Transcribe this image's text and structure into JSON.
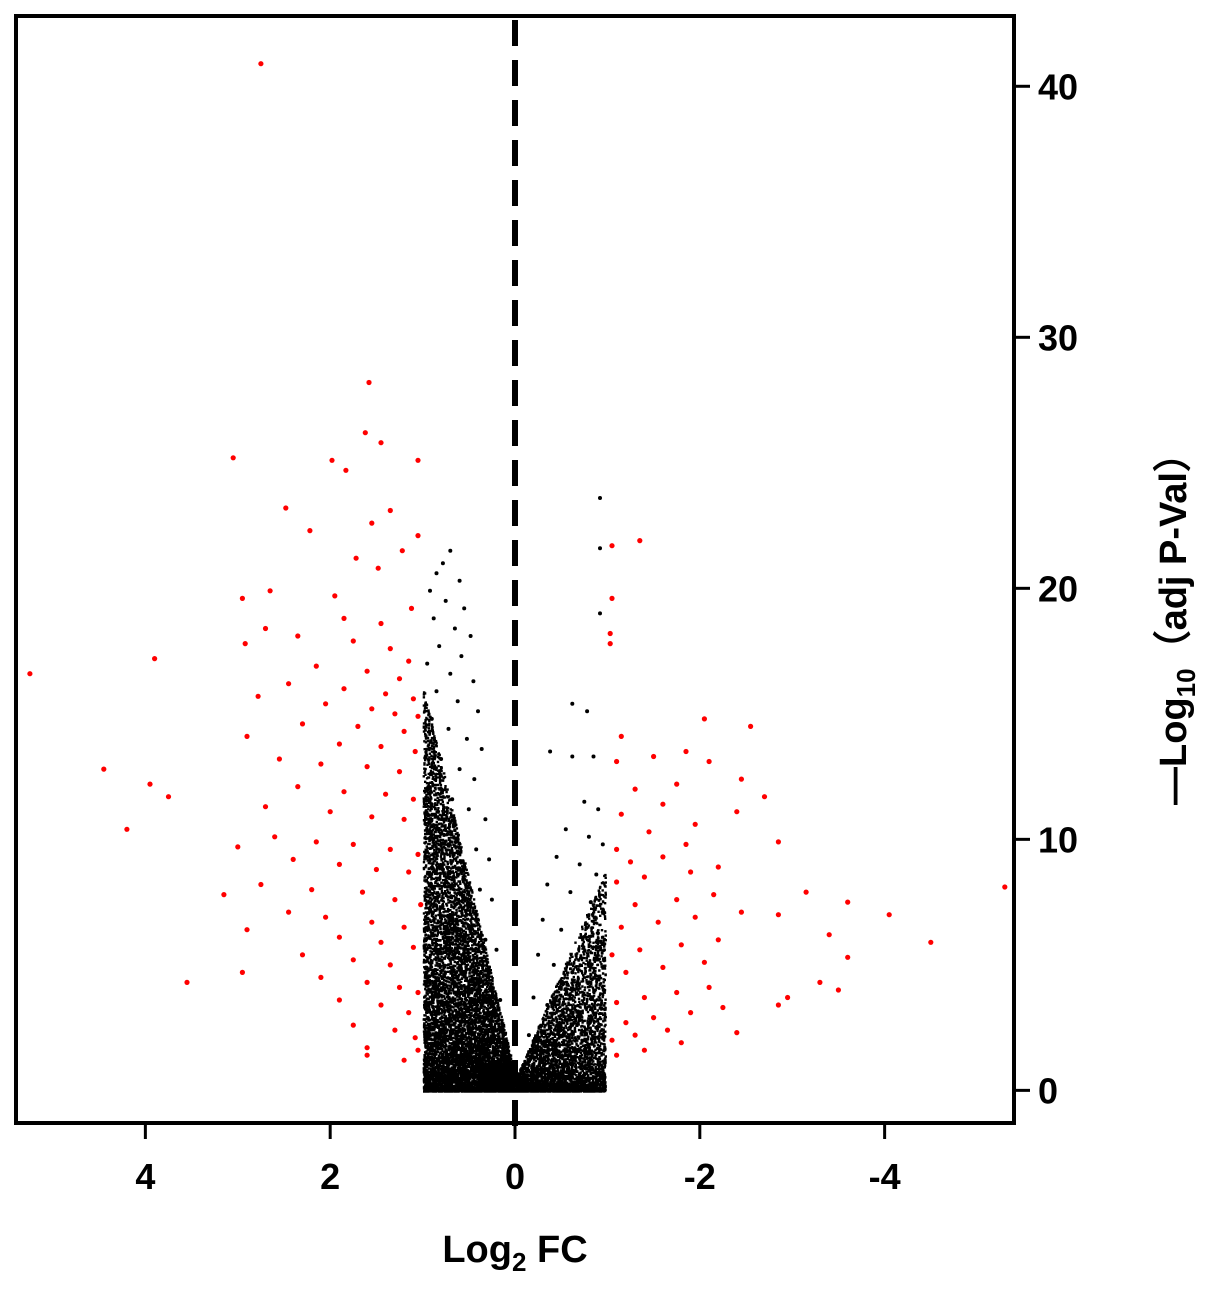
{
  "chart_data": {
    "type": "scatter",
    "title": "",
    "xlabel": {
      "prefix": "Log",
      "sub": "2",
      "suffix": " FC"
    },
    "ylabel": {
      "prefix": "—Log",
      "sub": "10",
      "suffix": "（adj P-Val）"
    },
    "x_reversed": true,
    "xlim": [
      5.4,
      -5.4
    ],
    "ylim": [
      -1.3,
      42.8
    ],
    "x_ticks": [
      4,
      2,
      0,
      -2,
      -4
    ],
    "x_tick_labels": [
      "4",
      "2",
      "0",
      "-2",
      "-4"
    ],
    "y_ticks": [
      0,
      10,
      20,
      30,
      40
    ],
    "y_tick_labels": [
      "0",
      "10",
      "20",
      "30",
      "40"
    ],
    "y_axis_side": "right",
    "grid": false,
    "legend": "none",
    "reference_lines": [
      {
        "orientation": "vertical",
        "x": 0,
        "style": "dashed",
        "color": "#000000"
      }
    ],
    "colors": {
      "significant": "#ff0000",
      "not_significant": "#000000"
    },
    "significance_rule": "|log2FC| > 1",
    "series": [
      {
        "color_key": "significant",
        "points": [
          [
            2.75,
            40.9
          ],
          [
            1.58,
            28.2
          ],
          [
            1.62,
            26.2
          ],
          [
            1.45,
            25.8
          ],
          [
            1.05,
            25.1
          ],
          [
            3.05,
            25.2
          ],
          [
            1.98,
            25.1
          ],
          [
            1.83,
            24.7
          ],
          [
            1.55,
            22.6
          ],
          [
            2.48,
            23.2
          ],
          [
            1.35,
            23.1
          ],
          [
            1.05,
            22.1
          ],
          [
            2.22,
            22.3
          ],
          [
            1.72,
            21.2
          ],
          [
            1.48,
            20.8
          ],
          [
            1.22,
            21.5
          ],
          [
            2.65,
            19.9
          ],
          [
            1.95,
            19.7
          ],
          [
            2.95,
            19.6
          ],
          [
            1.12,
            19.2
          ],
          [
            1.85,
            18.8
          ],
          [
            1.45,
            18.6
          ],
          [
            2.7,
            18.4
          ],
          [
            2.35,
            18.1
          ],
          [
            2.92,
            17.8
          ],
          [
            1.75,
            17.9
          ],
          [
            1.35,
            17.6
          ],
          [
            1.15,
            17.1
          ],
          [
            3.9,
            17.2
          ],
          [
            5.25,
            16.6
          ],
          [
            2.15,
            16.9
          ],
          [
            1.6,
            16.7
          ],
          [
            1.25,
            16.4
          ],
          [
            2.45,
            16.2
          ],
          [
            1.85,
            16.0
          ],
          [
            1.4,
            15.8
          ],
          [
            1.1,
            15.6
          ],
          [
            2.78,
            15.7
          ],
          [
            2.05,
            15.4
          ],
          [
            1.55,
            15.2
          ],
          [
            1.3,
            15.0
          ],
          [
            1.05,
            14.9
          ],
          [
            2.3,
            14.6
          ],
          [
            1.7,
            14.5
          ],
          [
            1.2,
            14.3
          ],
          [
            2.9,
            14.1
          ],
          [
            1.9,
            13.8
          ],
          [
            1.45,
            13.7
          ],
          [
            1.08,
            13.5
          ],
          [
            2.55,
            13.2
          ],
          [
            2.1,
            13.0
          ],
          [
            1.6,
            12.9
          ],
          [
            1.25,
            12.7
          ],
          [
            4.45,
            12.8
          ],
          [
            3.95,
            12.2
          ],
          [
            3.75,
            11.7
          ],
          [
            2.35,
            12.1
          ],
          [
            1.85,
            11.9
          ],
          [
            1.4,
            11.8
          ],
          [
            1.1,
            11.6
          ],
          [
            2.7,
            11.3
          ],
          [
            2.0,
            11.1
          ],
          [
            1.55,
            10.9
          ],
          [
            1.2,
            10.8
          ],
          [
            4.2,
            10.4
          ],
          [
            3.0,
            9.7
          ],
          [
            2.6,
            10.1
          ],
          [
            2.15,
            9.9
          ],
          [
            1.75,
            9.8
          ],
          [
            1.35,
            9.6
          ],
          [
            1.05,
            9.4
          ],
          [
            2.4,
            9.2
          ],
          [
            1.9,
            9.0
          ],
          [
            1.5,
            8.8
          ],
          [
            1.15,
            8.7
          ],
          [
            3.15,
            7.8
          ],
          [
            2.75,
            8.2
          ],
          [
            2.2,
            8.0
          ],
          [
            1.65,
            7.9
          ],
          [
            1.3,
            7.6
          ],
          [
            1.02,
            7.4
          ],
          [
            2.9,
            6.4
          ],
          [
            2.45,
            7.1
          ],
          [
            2.05,
            6.9
          ],
          [
            1.55,
            6.7
          ],
          [
            1.2,
            6.5
          ],
          [
            1.9,
            6.1
          ],
          [
            1.45,
            5.9
          ],
          [
            1.1,
            5.7
          ],
          [
            2.95,
            4.7
          ],
          [
            2.3,
            5.4
          ],
          [
            1.75,
            5.2
          ],
          [
            1.35,
            5.0
          ],
          [
            3.55,
            4.3
          ],
          [
            2.1,
            4.5
          ],
          [
            1.6,
            4.3
          ],
          [
            1.25,
            4.1
          ],
          [
            1.05,
            3.9
          ],
          [
            1.9,
            3.6
          ],
          [
            1.45,
            3.4
          ],
          [
            1.15,
            3.1
          ],
          [
            1.75,
            2.6
          ],
          [
            1.3,
            2.4
          ],
          [
            1.08,
            2.1
          ],
          [
            1.6,
            1.7
          ],
          [
            1.6,
            1.4
          ],
          [
            1.2,
            1.2
          ],
          [
            1.05,
            1.6
          ],
          [
            -1.05,
            21.7
          ],
          [
            -1.35,
            21.9
          ],
          [
            -1.05,
            19.6
          ],
          [
            -1.03,
            18.2
          ],
          [
            -1.03,
            17.8
          ],
          [
            -2.05,
            14.8
          ],
          [
            -2.55,
            14.5
          ],
          [
            -1.15,
            14.1
          ],
          [
            -1.85,
            13.5
          ],
          [
            -1.5,
            13.3
          ],
          [
            -1.1,
            13.1
          ],
          [
            -2.1,
            13.1
          ],
          [
            -2.45,
            12.4
          ],
          [
            -1.75,
            12.2
          ],
          [
            -1.3,
            12.0
          ],
          [
            -2.7,
            11.7
          ],
          [
            -1.6,
            11.4
          ],
          [
            -2.4,
            11.1
          ],
          [
            -1.15,
            11.0
          ],
          [
            -1.95,
            10.6
          ],
          [
            -1.45,
            10.3
          ],
          [
            -2.85,
            9.9
          ],
          [
            -1.85,
            9.8
          ],
          [
            -1.1,
            9.6
          ],
          [
            -1.6,
            9.3
          ],
          [
            -1.25,
            9.1
          ],
          [
            -2.2,
            8.9
          ],
          [
            -1.9,
            8.7
          ],
          [
            -1.4,
            8.5
          ],
          [
            -1.1,
            8.3
          ],
          [
            -5.3,
            8.1
          ],
          [
            -3.15,
            7.9
          ],
          [
            -2.15,
            7.8
          ],
          [
            -1.75,
            7.6
          ],
          [
            -1.3,
            7.4
          ],
          [
            -3.6,
            7.5
          ],
          [
            -4.05,
            7.0
          ],
          [
            -2.85,
            7.0
          ],
          [
            -2.45,
            7.1
          ],
          [
            -1.95,
            6.9
          ],
          [
            -1.55,
            6.7
          ],
          [
            -1.15,
            6.5
          ],
          [
            -3.4,
            6.2
          ],
          [
            -4.5,
            5.9
          ],
          [
            -2.2,
            6.0
          ],
          [
            -1.8,
            5.8
          ],
          [
            -1.35,
            5.6
          ],
          [
            -1.05,
            5.4
          ],
          [
            -3.6,
            5.3
          ],
          [
            -2.05,
            5.1
          ],
          [
            -1.6,
            4.9
          ],
          [
            -1.2,
            4.7
          ],
          [
            -3.3,
            4.3
          ],
          [
            -3.5,
            4.0
          ],
          [
            -2.95,
            3.7
          ],
          [
            -2.1,
            4.1
          ],
          [
            -1.75,
            3.9
          ],
          [
            -1.4,
            3.7
          ],
          [
            -1.1,
            3.5
          ],
          [
            -2.85,
            3.4
          ],
          [
            -2.25,
            3.3
          ],
          [
            -1.9,
            3.1
          ],
          [
            -1.5,
            2.9
          ],
          [
            -1.2,
            2.7
          ],
          [
            -2.4,
            2.3
          ],
          [
            -1.65,
            2.4
          ],
          [
            -1.3,
            2.2
          ],
          [
            -1.05,
            2.0
          ],
          [
            -1.8,
            1.9
          ],
          [
            -1.4,
            1.6
          ],
          [
            -1.1,
            1.4
          ]
        ]
      },
      {
        "color_key": "not_significant",
        "points": [
          [
            0.7,
            21.5
          ],
          [
            0.78,
            21.0
          ],
          [
            0.85,
            20.6
          ],
          [
            0.6,
            20.3
          ],
          [
            0.92,
            19.9
          ],
          [
            0.75,
            19.5
          ],
          [
            0.55,
            19.2
          ],
          [
            0.88,
            18.8
          ],
          [
            0.65,
            18.4
          ],
          [
            0.48,
            18.1
          ],
          [
            0.82,
            17.7
          ],
          [
            0.58,
            17.3
          ],
          [
            0.95,
            17.0
          ],
          [
            0.7,
            16.6
          ],
          [
            0.45,
            16.3
          ],
          [
            0.85,
            15.9
          ],
          [
            0.62,
            15.5
          ],
          [
            0.4,
            15.1
          ],
          [
            0.9,
            14.8
          ],
          [
            0.72,
            14.4
          ],
          [
            0.52,
            14.0
          ],
          [
            0.36,
            13.6
          ],
          [
            0.8,
            13.2
          ],
          [
            0.6,
            12.8
          ],
          [
            0.44,
            12.4
          ],
          [
            0.95,
            12.0
          ],
          [
            0.68,
            11.6
          ],
          [
            0.5,
            11.2
          ],
          [
            0.32,
            10.8
          ],
          [
            0.85,
            10.4
          ],
          [
            0.62,
            10.0
          ],
          [
            0.42,
            9.6
          ],
          [
            0.28,
            9.2
          ],
          [
            0.78,
            8.8
          ],
          [
            0.55,
            8.4
          ],
          [
            0.38,
            8.0
          ],
          [
            0.25,
            7.6
          ],
          [
            0.92,
            7.2
          ],
          [
            0.7,
            6.8
          ],
          [
            0.48,
            6.4
          ],
          [
            0.32,
            6.0
          ],
          [
            0.2,
            5.6
          ],
          [
            0.82,
            5.2
          ],
          [
            0.6,
            4.8
          ],
          [
            0.4,
            4.4
          ],
          [
            0.26,
            4.0
          ],
          [
            0.16,
            3.6
          ],
          [
            0.95,
            3.2
          ],
          [
            0.72,
            2.8
          ],
          [
            0.5,
            2.4
          ],
          [
            0.34,
            2.0
          ],
          [
            0.22,
            1.6
          ],
          [
            0.12,
            1.2
          ],
          [
            0.85,
            1.1
          ],
          [
            0.6,
            0.9
          ],
          [
            0.4,
            0.6
          ],
          [
            0.25,
            0.4
          ],
          [
            0.12,
            0.2
          ],
          [
            0.05,
            0.1
          ],
          [
            0.7,
            0.5
          ],
          [
            -0.05,
            0.1
          ],
          [
            -0.12,
            0.3
          ],
          [
            -0.2,
            0.6
          ],
          [
            -0.92,
            23.6
          ],
          [
            -0.92,
            21.6
          ],
          [
            -0.92,
            19.0
          ],
          [
            -0.62,
            15.4
          ],
          [
            -0.78,
            15.1
          ],
          [
            -0.38,
            13.5
          ],
          [
            -0.62,
            13.3
          ],
          [
            -0.85,
            13.3
          ],
          [
            -0.75,
            11.5
          ],
          [
            -0.9,
            11.2
          ],
          [
            -0.55,
            10.4
          ],
          [
            -0.8,
            10.1
          ],
          [
            -0.95,
            9.8
          ],
          [
            -0.45,
            9.3
          ],
          [
            -0.7,
            9.0
          ],
          [
            -0.88,
            8.6
          ],
          [
            -0.35,
            8.2
          ],
          [
            -0.6,
            7.9
          ],
          [
            -0.82,
            7.5
          ],
          [
            -0.95,
            7.1
          ],
          [
            -0.3,
            6.8
          ],
          [
            -0.5,
            6.4
          ],
          [
            -0.72,
            6.1
          ],
          [
            -0.9,
            5.7
          ],
          [
            -0.25,
            5.4
          ],
          [
            -0.42,
            5.0
          ],
          [
            -0.62,
            4.7
          ],
          [
            -0.8,
            4.3
          ],
          [
            -0.96,
            4.0
          ],
          [
            -0.2,
            3.7
          ],
          [
            -0.35,
            3.4
          ],
          [
            -0.52,
            3.1
          ],
          [
            -0.7,
            2.8
          ],
          [
            -0.88,
            2.5
          ],
          [
            -0.15,
            2.2
          ],
          [
            -0.3,
            1.9
          ],
          [
            -0.45,
            1.6
          ],
          [
            -0.62,
            1.3
          ],
          [
            -0.8,
            1.1
          ],
          [
            -0.95,
            0.9
          ],
          [
            -0.1,
            0.9
          ],
          [
            -0.25,
            0.8
          ],
          [
            -0.4,
            0.6
          ],
          [
            -0.55,
            0.5
          ],
          [
            -0.7,
            0.4
          ]
        ]
      }
    ]
  }
}
